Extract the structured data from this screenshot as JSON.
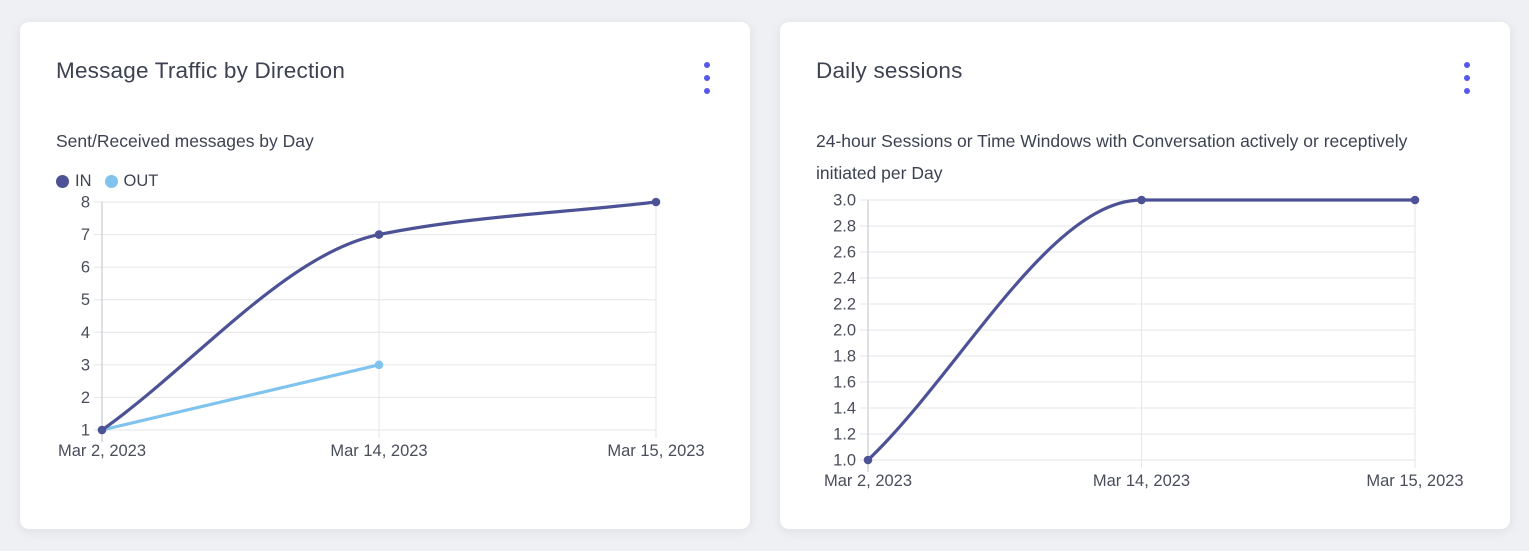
{
  "theme": {
    "page_bg": "#eff0f3",
    "card_bg": "#ffffff",
    "accent": "#5558eb",
    "title_color": "#3d4252",
    "tick_color": "#4a4e5a",
    "grid_color": "#e6e6ea",
    "axis_color": "#c9cad1",
    "series_in_color": "#4c5295",
    "series_out_color": "#7fc3ee"
  },
  "cards": [
    {
      "title": "Message Traffic by Direction",
      "subtitle": "Sent/Received messages by Day",
      "menu_icon": "kebab-menu-icon"
    },
    {
      "title": "Daily sessions",
      "subtitle": "24-hour Sessions or Time Windows with Conversation actively or receptively initiated per Day",
      "menu_icon": "kebab-menu-icon"
    }
  ],
  "chart_data": [
    {
      "type": "line",
      "title": "Message Traffic by Direction",
      "subtitle": "Sent/Received messages by Day",
      "categories": [
        "Mar 2, 2023",
        "Mar 14, 2023",
        "Mar 15, 2023"
      ],
      "series": [
        {
          "name": "IN",
          "values": [
            1,
            7,
            8
          ],
          "color": "#4c5295"
        },
        {
          "name": "OUT",
          "values": [
            1,
            3,
            null
          ],
          "color": "#7fc3ee"
        }
      ],
      "ylabel": "",
      "xlabel": "",
      "ylim": [
        1,
        8
      ],
      "ytick_step": 1,
      "ytick_decimals": 0,
      "grid": true,
      "legend_position": "top-left",
      "curve": "monotone"
    },
    {
      "type": "line",
      "title": "Daily sessions",
      "subtitle": "24-hour Sessions or Time Windows with Conversation actively or receptively initiated per Day",
      "categories": [
        "Mar 2, 2023",
        "Mar 14, 2023",
        "Mar 15, 2023"
      ],
      "series": [
        {
          "name": "Daily sessions",
          "values": [
            1.0,
            3.0,
            3.0
          ],
          "color": "#4c5295"
        }
      ],
      "ylabel": "",
      "xlabel": "",
      "ylim": [
        1.0,
        3.0
      ],
      "ytick_step": 0.2,
      "ytick_decimals": 1,
      "grid": true,
      "legend_position": "none",
      "curve": "monotone"
    }
  ]
}
